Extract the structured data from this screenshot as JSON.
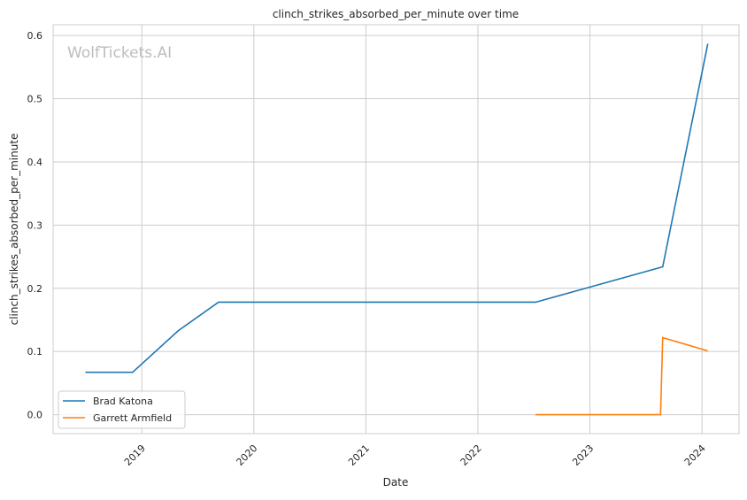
{
  "chart_data": {
    "type": "line",
    "title": "clinch_strikes_absorbed_per_minute over time",
    "xlabel": "Date",
    "ylabel": "clinch_strikes_absorbed_per_minute",
    "watermark": "WolfTickets.AI",
    "x_ticks": [
      "2019",
      "2020",
      "2021",
      "2022",
      "2023",
      "2024"
    ],
    "y_ticks": [
      "0.0",
      "0.1",
      "0.2",
      "0.3",
      "0.4",
      "0.5",
      "0.6"
    ],
    "ylim": [
      -0.03,
      0.617
    ],
    "xlim": [
      "2018-03-18",
      "2024-05-01"
    ],
    "grid": true,
    "legend_position": "lower-left",
    "series": [
      {
        "name": "Brad Katona",
        "color": "#1f77b4",
        "x": [
          "2018-07-01",
          "2018-12-02",
          "2019-04-30",
          "2019-09-08",
          "2022-07-08",
          "2023-08-26",
          "2024-01-20"
        ],
        "y": [
          0.067,
          0.067,
          0.133,
          0.178,
          0.178,
          0.234,
          0.587
        ]
      },
      {
        "name": "Garrett Armfield",
        "color": "#ff7f0e",
        "x": [
          "2022-07-08",
          "2023-08-19",
          "2023-08-26",
          "2024-01-20"
        ],
        "y": [
          0.0,
          0.0,
          0.122,
          0.101
        ]
      }
    ]
  }
}
